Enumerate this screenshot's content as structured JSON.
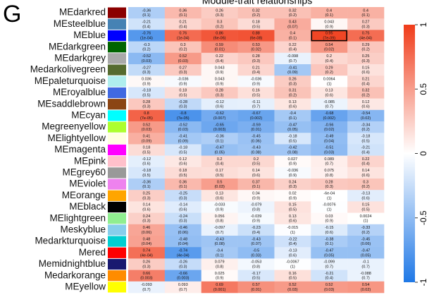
{
  "chart_data": {
    "type": "heatmap",
    "title": "Module-trait relationships",
    "panel_label": "G",
    "rows": [
      "MEdarkred",
      "MEsteelblue",
      "MEblue",
      "MEdarkgreen",
      "MEdarkgrey",
      "Medarkolivegreen",
      "MEpaleturquoise",
      "MEroyalblue",
      "MEsaddlebrown",
      "MEcyan",
      "Megreenyellow",
      "MElightyellow",
      "MEmagenta",
      "MEpink",
      "MEgrey60",
      "MEviolet",
      "MEorange",
      "MEblack",
      "MElightgreen",
      "Meskyblue",
      "Medarkturquoise",
      "Mered",
      "Memidnightblue",
      "Medarkorange",
      "MEyellow"
    ],
    "row_colors": [
      "#8b0000",
      "#4682b4",
      "#0000ff",
      "#006400",
      "#a9a9a9",
      "#556b2f",
      "#afeeee",
      "#4169e1",
      "#8b4513",
      "#00ffff",
      "#adff2f",
      "#ffffe0",
      "#ff00ff",
      "#ffc0cb",
      "#999999",
      "#ee82ee",
      "#ffa500",
      "#000000",
      "#90ee90",
      "#87ceeb",
      "#00ced1",
      "#ff0000",
      "#191970",
      "#ff8c00",
      "#ffff00"
    ],
    "values": [
      [
        -0.36,
        0.36,
        0.26,
        0.32,
        0.32,
        0.4,
        0.4
      ],
      [
        -0.21,
        0.21,
        0.3,
        0.18,
        0.43,
        0.043,
        0.27
      ],
      [
        -0.76,
        0.76,
        0.86,
        0.88,
        0.4,
        0.95,
        0.75
      ],
      [
        -0.3,
        0.3,
        0.59,
        0.53,
        0.22,
        0.54,
        0.29
      ],
      [
        -0.52,
        0.52,
        0.22,
        0.28,
        -0.098,
        0.2,
        0.25
      ],
      [
        -0.27,
        0.27,
        0.043,
        0.21,
        -0.41,
        0.29,
        0.15
      ],
      [
        0.036,
        -0.036,
        0.043,
        -0.036,
        0.26,
        0.0064,
        0.21
      ],
      [
        -0.18,
        0.18,
        0.28,
        0.16,
        0.31,
        0.13,
        0.32
      ],
      [
        0.28,
        -0.28,
        -0.12,
        -0.11,
        0.13,
        -0.085,
        0.12
      ],
      [
        0.8,
        -0.8,
        -0.62,
        -0.67,
        -0.4,
        -0.68,
        -0.54
      ],
      [
        0.52,
        -0.52,
        -0.65,
        -0.59,
        -0.47,
        -0.56,
        -0.34
      ],
      [
        0.41,
        -0.41,
        -0.36,
        -0.45,
        -0.18,
        -0.49,
        -0.18
      ],
      [
        0.18,
        -0.18,
        -0.47,
        -0.43,
        -0.42,
        -0.51,
        -0.21
      ],
      [
        -0.12,
        0.12,
        0.2,
        0.2,
        0.027,
        0.089,
        0.22
      ],
      [
        -0.18,
        0.18,
        0.17,
        0.14,
        -0.036,
        0.075,
        0.14
      ],
      [
        -0.36,
        0.36,
        0.5,
        0.37,
        0.24,
        0.28,
        0.3
      ],
      [
        0.25,
        -0.25,
        0.13,
        0.04,
        0.02,
        -0.0006,
        -0.13
      ],
      [
        0.14,
        -0.14,
        -0.033,
        -0.079,
        0.15,
        -0.0076,
        0.15
      ],
      [
        0.24,
        -0.24,
        0.056,
        -0.039,
        0.13,
        0.03,
        0.0024
      ],
      [
        0.46,
        -0.46,
        -0.097,
        -0.23,
        -0.015,
        -0.15,
        -0.33
      ],
      [
        0.48,
        -0.48,
        -0.43,
        -0.43,
        -0.22,
        -0.38,
        -0.45
      ],
      [
        0.74,
        -0.74,
        -0.4,
        -0.5,
        -0.13,
        -0.47,
        -0.47
      ],
      [
        0.26,
        -0.26,
        0.079,
        -0.053,
        -0.0067,
        -0.099,
        -0.1
      ],
      [
        0.66,
        -0.66,
        0.025,
        -0.17,
        0.16,
        -0.21,
        -0.088
      ],
      [
        -0.093,
        0.093,
        0.69,
        0.57,
        0.52,
        0.52,
        0.54
      ]
    ],
    "value_labels": [
      [
        "-0.36",
        "0.36",
        "0.26",
        "0.32",
        "0.32",
        "0.4",
        "0.4"
      ],
      [
        "-0.21",
        "0.21",
        "0.3",
        "0.18",
        "0.43",
        "0.043",
        "0.27"
      ],
      [
        "-0.76",
        "0.76",
        "0.86",
        "0.88",
        "0.4",
        "0.95",
        "0.75"
      ],
      [
        "-0.3",
        "0.3",
        "0.59",
        "0.53",
        "0.22",
        "0.54",
        "0.29"
      ],
      [
        "-0.52",
        "0.52",
        "0.22",
        "0.28",
        "-0.098",
        "0.2",
        "0.25"
      ],
      [
        "-0.27",
        "0.27",
        "0.043",
        "0.21",
        "-0.41",
        "0.29",
        "0.15"
      ],
      [
        "0.036",
        "-0.036",
        "0.043",
        "-0.036",
        "0.26",
        "0.0064",
        "0.21"
      ],
      [
        "-0.18",
        "0.18",
        "0.28",
        "0.16",
        "0.31",
        "0.13",
        "0.32"
      ],
      [
        "0.28",
        "-0.28",
        "-0.12",
        "-0.11",
        "0.13",
        "-0.085",
        "0.12"
      ],
      [
        "0.8",
        "-0.8",
        "-0.62",
        "-0.67",
        "-0.4",
        "-0.68",
        "-0.54"
      ],
      [
        "0.52",
        "-0.52",
        "-0.65",
        "-0.59",
        "-0.47",
        "-0.56",
        "-0.34"
      ],
      [
        "0.41",
        "-0.41",
        "-0.36",
        "-0.45",
        "-0.18",
        "-0.49",
        "-0.18"
      ],
      [
        "0.18",
        "-0.18",
        "-0.47",
        "-0.43",
        "-0.42",
        "-0.51",
        "-0.21"
      ],
      [
        "-0.12",
        "0.12",
        "0.2",
        "0.2",
        "0.027",
        "0.089",
        "0.22"
      ],
      [
        "-0.18",
        "0.18",
        "0.17",
        "0.14",
        "-0.036",
        "0.075",
        "0.14"
      ],
      [
        "-0.36",
        "0.36",
        "0.5",
        "0.37",
        "0.24",
        "0.28",
        "0.3"
      ],
      [
        "0.25",
        "-0.25",
        "0.13",
        "0.04",
        "0.02",
        "-6e-04",
        "-0.13"
      ],
      [
        "0.14",
        "-0.14",
        "-0.033",
        "-0.079",
        "0.15",
        "-0.0076",
        "0.15"
      ],
      [
        "0.24",
        "-0.24",
        "0.056",
        "-0.039",
        "0.13",
        "0.03",
        "0.0024"
      ],
      [
        "0.46",
        "-0.46",
        "-0.097",
        "-0.23",
        "-0.015",
        "-0.15",
        "-0.33"
      ],
      [
        "0.48",
        "-0.48",
        "-0.43",
        "-0.43",
        "-0.22",
        "-0.38",
        "-0.45"
      ],
      [
        "0.74",
        "-0.74",
        "-0.4",
        "-0.5",
        "-0.13",
        "-0.47",
        "-0.47"
      ],
      [
        "0.26",
        "-0.26",
        "0.079",
        "-0.053",
        "-0.0067",
        "-0.099",
        "-0.1"
      ],
      [
        "0.66",
        "-0.66",
        "0.025",
        "-0.17",
        "0.16",
        "-0.21",
        "-0.088"
      ],
      [
        "-0.093",
        "0.093",
        "0.69",
        "0.57",
        "0.52",
        "0.52",
        "0.54"
      ]
    ],
    "p_labels": [
      [
        "(0.1)",
        "(0.1)",
        "(0.3)",
        "(0.2)",
        "(0.2)",
        "(0.1)",
        "(0.1)"
      ],
      [
        "(0.4)",
        "(0.4)",
        "(0.2)",
        "(0.5)",
        "(0.07)",
        "(0.9)",
        "(0.3)"
      ],
      [
        "(1e-04)",
        "(1e-04)",
        "(6e-06)",
        "(6e-08)",
        "(0.1)",
        "(7e-09)",
        "(4e-04)"
      ],
      [
        "(0.2)",
        "(0.2)",
        "(0.01)",
        "(0.02)",
        "(0.4)",
        "(0.02)",
        "(0.2)"
      ],
      [
        "(0.03)",
        "(0.03)",
        "(0.4)",
        "(0.3)",
        "(0.7)",
        "(0.4)",
        "(0.3)"
      ],
      [
        "(0.3)",
        "(0.3)",
        "(0.9)",
        "(0.4)",
        "(0.09)",
        "(0.2)",
        "(0.6)"
      ],
      [
        "(0.9)",
        "(0.9)",
        "(0.9)",
        "(0.9)",
        "(0.3)",
        "(1)",
        "(0.4)"
      ],
      [
        "(0.5)",
        "(0.5)",
        "(0.3)",
        "(0.5)",
        "(0.2)",
        "(0.6)",
        "(0.2)"
      ],
      [
        "(0.3)",
        "(0.3)",
        "(0.6)",
        "(0.7)",
        "(0.6)",
        "(0.7)",
        "(0.6)"
      ],
      [
        "(7e-05)",
        "(7e-05)",
        "(0.007)",
        "(0.002)",
        "(0.1)",
        "(0.002)",
        "(0.02)"
      ],
      [
        "(0.03)",
        "(0.03)",
        "(0.003)",
        "(0.01)",
        "(0.05)",
        "(0.02)",
        "(0.2)"
      ],
      [
        "(0.09)",
        "(0.09)",
        "(0.1)",
        "(0.06)",
        "(0.5)",
        "(0.04)",
        "(0.5)"
      ],
      [
        "(0.5)",
        "(0.5)",
        "(0.05)",
        "(0.08)",
        "(0.08)",
        "(0.03)",
        "(0.4)"
      ],
      [
        "(0.6)",
        "(0.6)",
        "(0.4)",
        "(0.5)",
        "(0.9)",
        "(0.7)",
        "(0.4)"
      ],
      [
        "(0.5)",
        "(0.5)",
        "(0.5)",
        "(0.6)",
        "(0.9)",
        "(0.8)",
        "(0.6)"
      ],
      [
        "(0.1)",
        "(0.1)",
        "(0.03)",
        "(0.1)",
        "(0.3)",
        "(0.3)",
        "(0.2)"
      ],
      [
        "(0.3)",
        "(0.3)",
        "(0.6)",
        "(0.9)",
        "(0.9)",
        "(1)",
        "(0.6)"
      ],
      [
        "(0.6)",
        "(0.6)",
        "(0.9)",
        "(0.8)",
        "(0.5)",
        "(1)",
        "(0.5)"
      ],
      [
        "(0.3)",
        "(0.3)",
        "(0.8)",
        "(0.9)",
        "(0.6)",
        "(0.9)",
        "(1)"
      ],
      [
        "(0.06)",
        "(0.06)",
        "(0.7)",
        "(0.4)",
        "(1)",
        "(0.6)",
        "(0.2)"
      ],
      [
        "(0.04)",
        "(0.04)",
        "(0.08)",
        "(0.07)",
        "(0.4)",
        "(0.1)",
        "(0.06)"
      ],
      [
        "(4e-04)",
        "(4e-04)",
        "(0.1)",
        "(0.03)",
        "(0.6)",
        "(0.05)",
        "(0.05)"
      ],
      [
        "(0.3)",
        "(0.3)",
        "(0.8)",
        "(0.8)",
        "(1)",
        "(0.7)",
        "(0.7)"
      ],
      [
        "(0.003)",
        "(0.003)",
        "(0.9)",
        "(0.5)",
        "(0.5)",
        "(0.4)",
        "(0.7)"
      ],
      [
        "(0.7)",
        "(0.7)",
        "(0.001)",
        "(0.01)",
        "(0.03)",
        "(0.03)",
        "(0.02)"
      ]
    ],
    "highlight": [
      2,
      5
    ],
    "colorscale": [
      "#1f78e6",
      "#ffffff",
      "#f03c1a"
    ],
    "zlim": [
      -1,
      1
    ],
    "zticks": [
      -1,
      -0.5,
      0,
      0.5,
      1
    ]
  }
}
